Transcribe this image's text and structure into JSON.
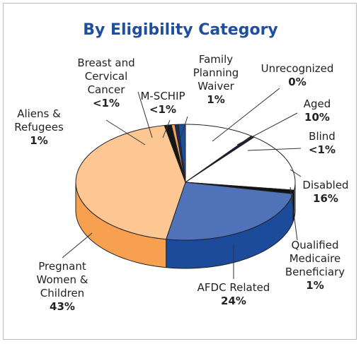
{
  "chart_data": {
    "type": "pie",
    "title": "By Eligibility Category",
    "categories": [
      "Unrecognized",
      "Aged",
      "Blind",
      "Disabled",
      "Qualified Medicaire Beneficiary",
      "AFDC Related",
      "Pregnant Women & Children",
      "Aliens & Refugees",
      "Breast and Cervical Cancer",
      "M-SCHIP",
      "Family Planning Waiver"
    ],
    "values": [
      0,
      10,
      0.5,
      16,
      1,
      24,
      43,
      1,
      0.5,
      0.5,
      1
    ],
    "value_labels": [
      "0%",
      "10%",
      "<1%",
      "16%",
      "1%",
      "24%",
      "43%",
      "1%",
      "<1%",
      "<1%",
      "1%"
    ],
    "colors": [
      "#ffffff",
      "#ffffff",
      "#1b1b3a",
      "#ffffff",
      "#111111",
      "#4f72b8",
      "#fcc792",
      "#151515",
      "#f4a25a",
      "#1f2a5e",
      "#1a4f9c"
    ],
    "side_colors": [
      "#dddddd",
      "#dddddd",
      "#0f0f25",
      "#dddddd",
      "#000000",
      "#1c4b9b",
      "#f6a050",
      "#000000",
      "#e08a3c",
      "#121a40",
      "#123a78"
    ]
  }
}
